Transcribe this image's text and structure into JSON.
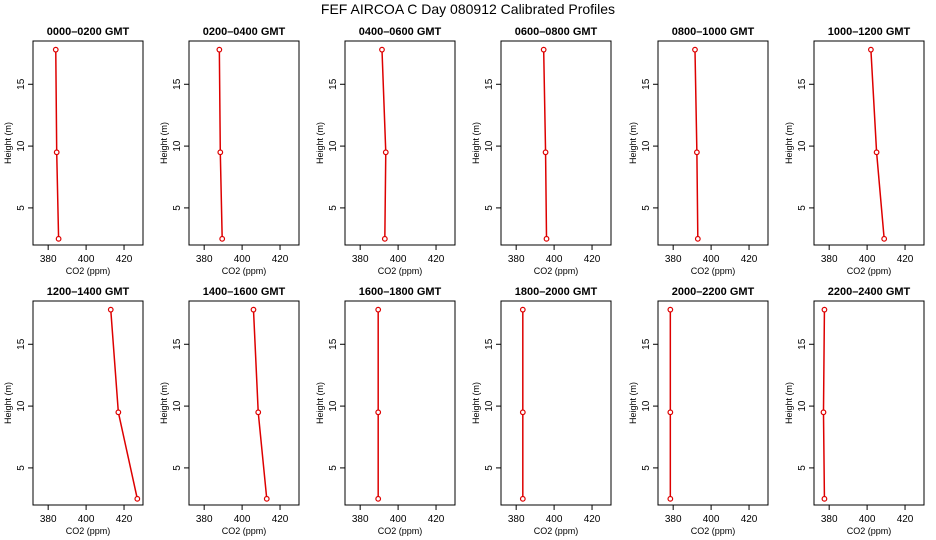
{
  "figure": {
    "title": "FEF AIRCOA C  Day 080912  Calibrated Profiles"
  },
  "style": {
    "line_color": "#dd0000",
    "marker_color": "#dd0000",
    "axis_color": "#000000"
  },
  "chart_data": {
    "type": "line",
    "xlabel": "CO2 (ppm)",
    "ylabel": "Height (m)",
    "xlim": [
      372,
      430
    ],
    "ylim": [
      2,
      18.5
    ],
    "xticks": [
      380,
      400,
      420
    ],
    "yticks": [
      5,
      10,
      15
    ],
    "heights": [
      2.5,
      9.5,
      17.8
    ],
    "panels": [
      {
        "title": "0000–0200 GMT",
        "co2": [
          385.5,
          384.5,
          384.0
        ]
      },
      {
        "title": "0200–0400 GMT",
        "co2": [
          389.5,
          388.5,
          388.0
        ]
      },
      {
        "title": "0400–0600 GMT",
        "co2": [
          393.0,
          393.5,
          391.5
        ]
      },
      {
        "title": "0600–0800 GMT",
        "co2": [
          396.0,
          395.5,
          394.5
        ]
      },
      {
        "title": "0800–1000 GMT",
        "co2": [
          393.0,
          392.5,
          391.5
        ]
      },
      {
        "title": "1000–1200 GMT",
        "co2": [
          409.0,
          405.0,
          402.0
        ]
      },
      {
        "title": "1200–1400 GMT",
        "co2": [
          427.0,
          417.0,
          413.0
        ]
      },
      {
        "title": "1400–1600 GMT",
        "co2": [
          413.0,
          408.5,
          406.0
        ]
      },
      {
        "title": "1600–1800 GMT",
        "co2": [
          389.5,
          389.5,
          389.5
        ]
      },
      {
        "title": "1800–2000 GMT",
        "co2": [
          383.5,
          383.5,
          383.5
        ]
      },
      {
        "title": "2000–2200 GMT",
        "co2": [
          378.5,
          378.5,
          378.5
        ]
      },
      {
        "title": "2200–2400 GMT",
        "co2": [
          377.5,
          377.0,
          377.5
        ]
      }
    ]
  }
}
